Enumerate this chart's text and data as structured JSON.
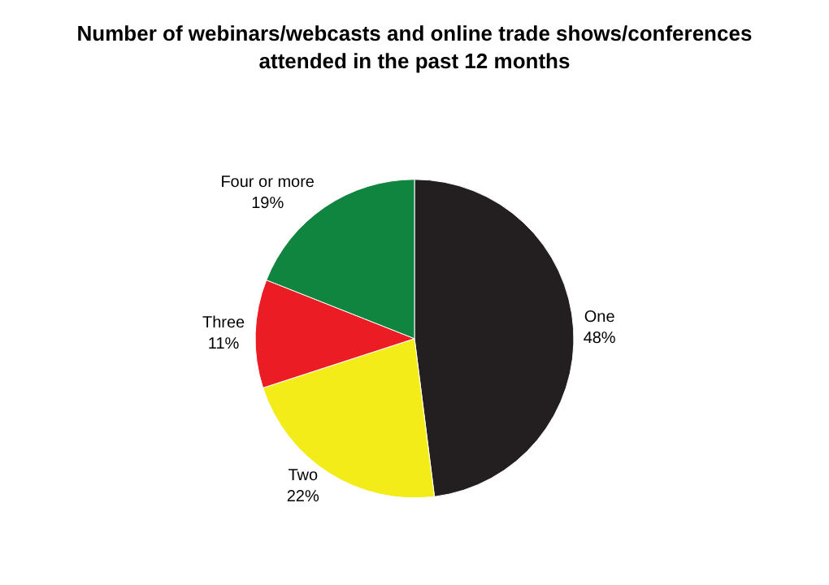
{
  "chart_data": {
    "type": "pie",
    "title": "Number of webinars/webcasts and online trade shows/conferences\nattended in the past 12 months",
    "categories": [
      "One",
      "Two",
      "Three",
      "Four or more"
    ],
    "values": [
      48,
      22,
      11,
      19
    ],
    "value_labels": [
      "48%",
      "22%",
      "11%",
      "19%"
    ],
    "colors": [
      "#231f20",
      "#f3ec19",
      "#ec1c24",
      "#10853f"
    ],
    "legend": false
  }
}
